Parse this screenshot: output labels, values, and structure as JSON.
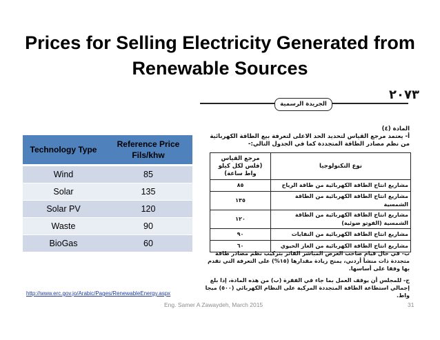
{
  "title": "Prices for Selling Electricity Generated from Renewable Sources",
  "ref_table": {
    "headers": [
      "Technology Type",
      "Reference Price Fils/khw"
    ],
    "rows": [
      {
        "type": "Wind",
        "price": "85"
      },
      {
        "type": "Solar",
        "price": "135"
      },
      {
        "type": "Solar PV",
        "price": "120"
      },
      {
        "type": "Waste",
        "price": "90"
      },
      {
        "type": "BioGas",
        "price": "60"
      }
    ]
  },
  "gazette": {
    "page_number": "٢٠٧٣",
    "header": "الجريدة الرسمية",
    "article": "المادة (٤)",
    "intro": "أ- يعتمد مرجع القياس لتحديد الحد الاعلى لتعرفة بيع الطاقة الكهربائية من نظم مصادر الطاقة المتجددة كما في الجدول التالي:-",
    "table": {
      "col_tech": "نوع التكنولوجيا",
      "col_ref": "مرجع القياس (فلس لكل كيلو واط ساعة)",
      "rows": [
        {
          "tech": "مشاريع انتاج الطاقة الكهربائية من طاقة الرياح",
          "value": "٨٥"
        },
        {
          "tech": "مشاريع انتاج الطاقة الكهربائية من الطاقة الشمسية",
          "value": "١٣٥"
        },
        {
          "tech": "مشاريع انتاج الطاقة الكهربائية من الطاقة الشمسية (الفوتو ضوئية)",
          "value": "١٢٠"
        },
        {
          "tech": "مشاريع انتاج الطاقة الكهربائية من النفايات",
          "value": "٩٠"
        },
        {
          "tech": "مشاريع انتاج الطاقة الكهربائية من الغاز الحيوي",
          "value": "٦٠"
        }
      ]
    },
    "note_b": "ب- في حال قيام صاحب العرض المباشر الفائز بتركيب نظم مصادر طاقة متجددة ذات منشأ أردني، يمنح زيادة مقدارها (١٥%) على التعرفة التي تقدم بها وفقا على أساسها.",
    "note_c": "ج- للمجلس أن يوقف العمل بما جاء في الفقرة (ب) من هذه المادة، إذا بلغ إجمالي استطاعة الطاقة المتجددة المركبة على النظام الكهربائي (٥٠٠) ميجا واط."
  },
  "source_url": "http://www.erc.gov.jo/Arabic/Pages/RenewableEnergy.aspx",
  "footer": "Eng. Samer A Zawaydeh, March 2015",
  "page_number": "31"
}
